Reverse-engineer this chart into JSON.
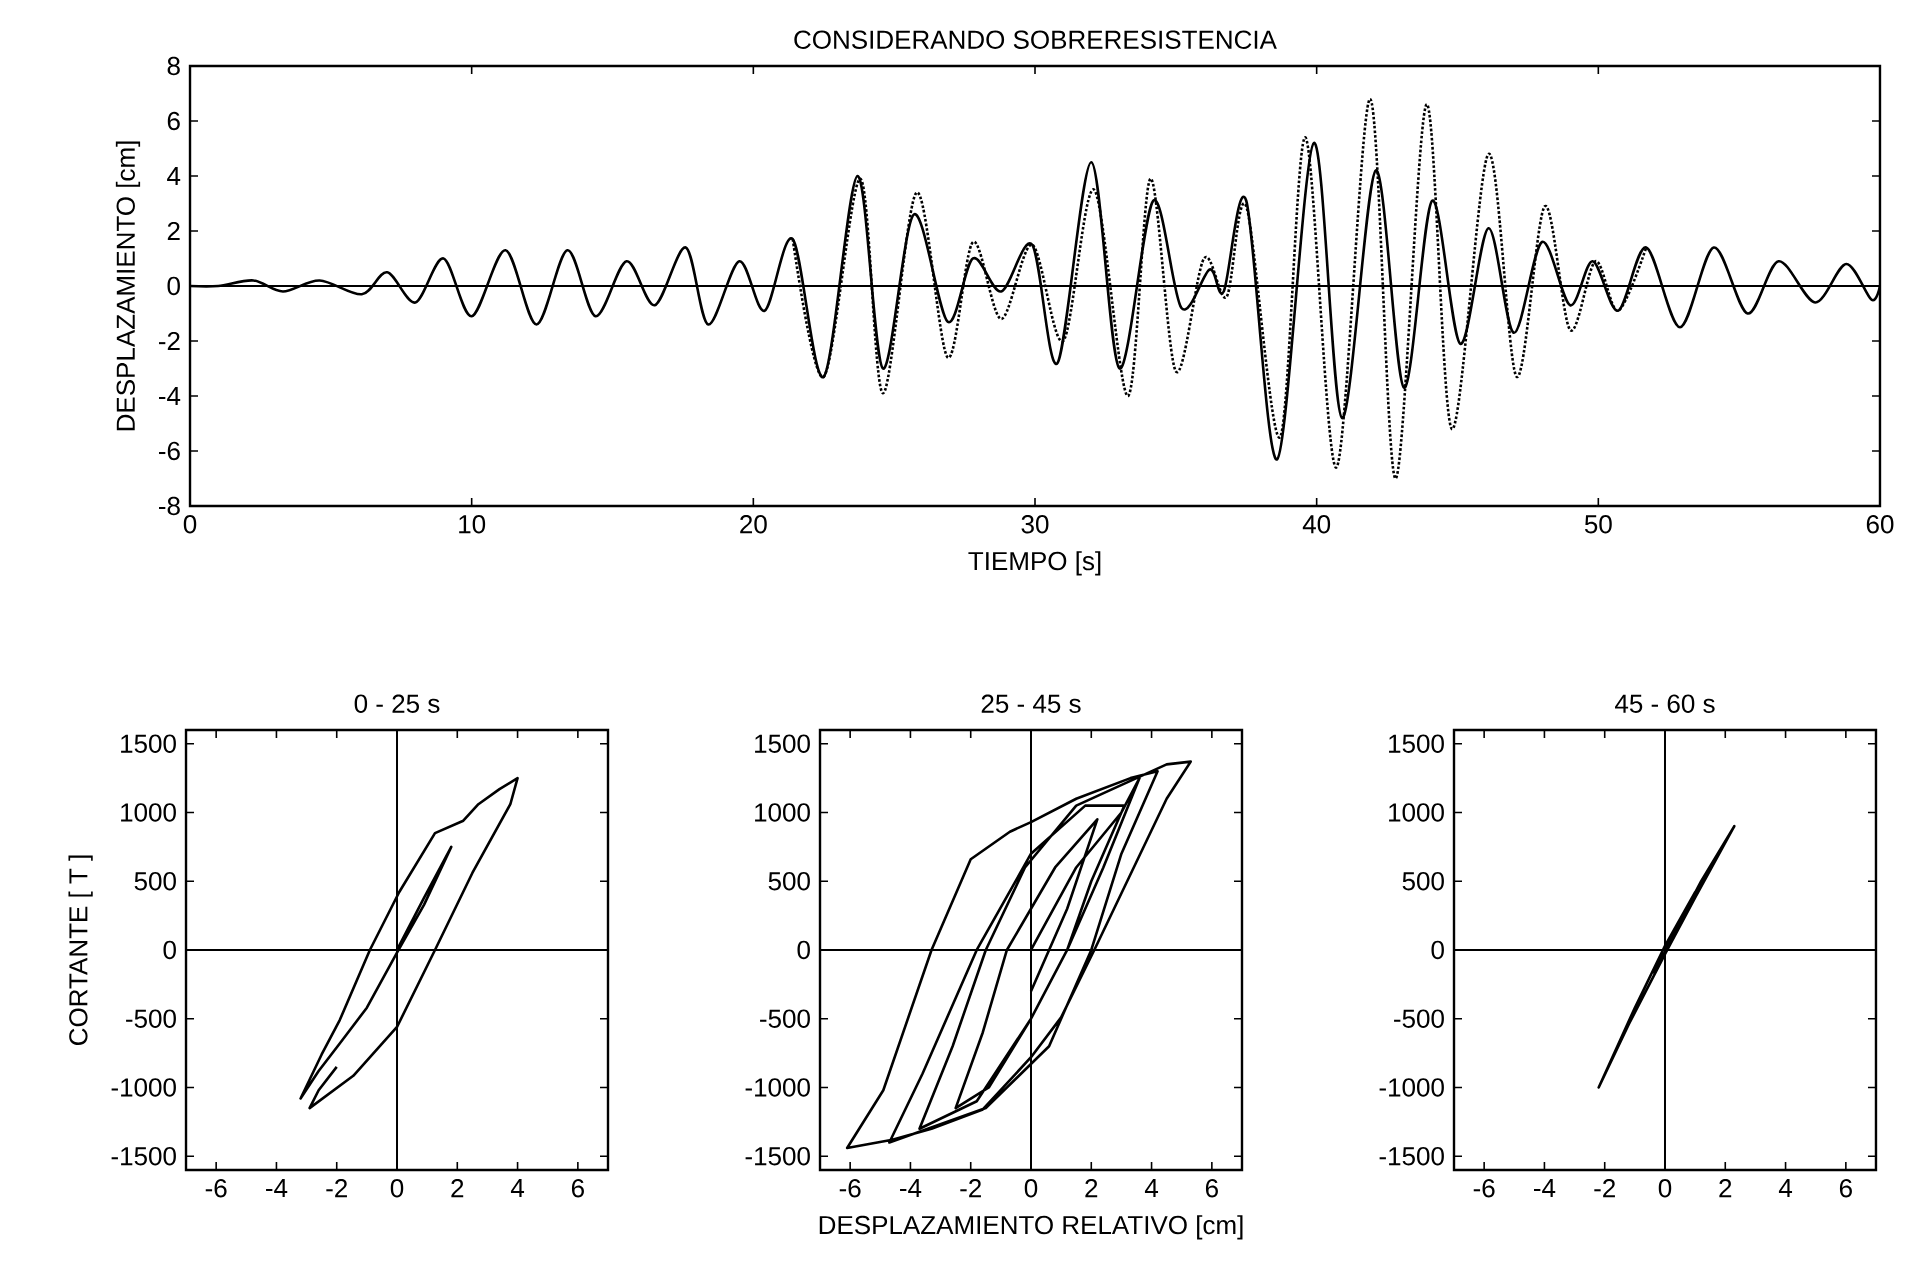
{
  "chart_data": [
    {
      "type": "line",
      "title": "CONSIDERANDO SOBRERESISTENCIA",
      "xlabel": "TIEMPO [s]",
      "ylabel": "DESPLAZAMIENTO [cm]",
      "xlim": [
        0,
        60
      ],
      "ylim": [
        -8,
        8
      ],
      "xticks": [
        0,
        10,
        20,
        30,
        40,
        50,
        60
      ],
      "yticks": [
        -8,
        -6,
        -4,
        -2,
        0,
        2,
        4,
        6,
        8
      ],
      "ref_lines": [
        {
          "axis": "y",
          "value": 0
        }
      ],
      "series": [
        {
          "color": "#000000",
          "line_style": "solid",
          "x": [
            0,
            1,
            2.25,
            3.3,
            4.6,
            6.1,
            7.0,
            8.0,
            9.0,
            10.0,
            11.2,
            12.3,
            13.4,
            14.4,
            15.5,
            16.5,
            17.6,
            18.4,
            19.5,
            20.4,
            21.4,
            22.5,
            23.7,
            24.6,
            25.7,
            26.9,
            27.8,
            28.8,
            29.9,
            30.8,
            32.0,
            33.0,
            34.2,
            35.2,
            36.2,
            36.7,
            37.5,
            38.6,
            39.9,
            40.9,
            42.1,
            43.1,
            44.1,
            45.1,
            46.1,
            47.0,
            48.0,
            49.0,
            49.8,
            50.7,
            51.7,
            52.9,
            54.1,
            55.3,
            56.4,
            57.7,
            58.8,
            59.7,
            60
          ],
          "values": [
            0,
            0,
            0.2,
            -0.2,
            0.2,
            -0.3,
            0.5,
            -0.6,
            1.0,
            -1.1,
            1.3,
            -1.4,
            1.3,
            -1.1,
            0.9,
            -0.7,
            1.4,
            -1.4,
            0.9,
            -0.9,
            1.7,
            -3.3,
            4.0,
            -3.0,
            2.6,
            -1.3,
            1.0,
            -0.2,
            1.5,
            -2.8,
            4.5,
            -3.0,
            3.1,
            -0.8,
            0.6,
            -0.2,
            3.1,
            -6.3,
            5.2,
            -4.8,
            4.2,
            -3.7,
            3.1,
            -2.1,
            2.1,
            -1.7,
            1.6,
            -0.7,
            0.9,
            -0.9,
            1.4,
            -1.5,
            1.4,
            -1.0,
            0.9,
            -0.6,
            0.8,
            -0.5,
            0
          ]
        },
        {
          "color": "#000000",
          "line_style": "dotted",
          "x": [
            21.4,
            22.5,
            23.8,
            24.6,
            25.8,
            26.9,
            27.8,
            28.8,
            29.9,
            31.0,
            32.1,
            33.3,
            34.1,
            35.0,
            36.0,
            36.8,
            37.5,
            38.7,
            39.6,
            40.7,
            41.9,
            42.8,
            43.9,
            44.8,
            46.1,
            47.1,
            48.1,
            49.0,
            49.9,
            50.7,
            51.7
          ],
          "values": [
            1.7,
            -3.3,
            3.9,
            -3.9,
            3.4,
            -2.6,
            1.6,
            -1.2,
            1.5,
            -2.0,
            3.5,
            -4.0,
            3.9,
            -3.1,
            1.0,
            -0.4,
            2.9,
            -5.5,
            5.4,
            -6.6,
            6.8,
            -7.0,
            6.6,
            -5.2,
            4.8,
            -3.3,
            2.9,
            -1.6,
            0.9,
            -0.9,
            1.4
          ]
        }
      ]
    },
    {
      "type": "line",
      "title": "0 - 25 s",
      "ylabel": "CORTANTE [ T ]",
      "xlim": [
        -7,
        7
      ],
      "ylim": [
        -1600,
        1600
      ],
      "xticks": [
        -6,
        -4,
        -2,
        0,
        2,
        4,
        6
      ],
      "yticks": [
        -1500,
        -1000,
        -500,
        0,
        500,
        1000,
        1500
      ],
      "ref_lines": [
        {
          "axis": "x",
          "value": 0
        },
        {
          "axis": "y",
          "value": 0
        }
      ],
      "series": [
        {
          "color": "#000000",
          "line_style": "solid",
          "x": [
            0,
            0.9,
            1.8,
            0.9,
            0,
            -1.0,
            -1.9,
            -2.6,
            -3.2,
            -2.5,
            -1.9,
            -0.9,
            0.07,
            1.26,
            2.2,
            2.7,
            3.4,
            4.0,
            3.76,
            2.5,
            1.26,
            0,
            -1.45,
            -2.9,
            -2.6,
            -2.0
          ],
          "values": [
            0,
            380,
            750,
            330,
            -20,
            -420,
            -680,
            -880,
            -1080,
            -760,
            -510,
            0,
            420,
            850,
            940,
            1060,
            1170,
            1250,
            1060,
            560,
            0,
            -560,
            -915,
            -1150,
            -1020,
            -850
          ]
        }
      ]
    },
    {
      "type": "line",
      "title": "25 - 45 s",
      "xlabel": "DESPLAZAMIENTO RELATIVO [cm]",
      "xlim": [
        -7,
        7
      ],
      "ylim": [
        -1600,
        1600
      ],
      "xticks": [
        -6,
        -4,
        -2,
        0,
        2,
        4,
        6
      ],
      "yticks": [
        -1500,
        -1000,
        -500,
        0,
        500,
        1000,
        1500
      ],
      "ref_lines": [
        {
          "axis": "x",
          "value": 0
        },
        {
          "axis": "y",
          "value": 0
        }
      ],
      "series": [
        {
          "color": "#000000",
          "line_style": "solid",
          "x": [
            0,
            1.5,
            3.0,
            3.6,
            2.4,
            1.2,
            0,
            -1.8,
            -3.7,
            -2.6,
            -1.5,
            -0.2,
            1.5,
            4.5,
            5.3,
            4.5,
            2.1,
            1.0,
            0,
            -1.6,
            -3.3,
            -4.6,
            -6.1,
            -4.9,
            -3.3,
            -2.0,
            -0.7,
            0,
            1.5,
            3.3,
            4.2,
            3.0,
            2.0,
            0.6,
            -1.5,
            -4.7,
            -3.6,
            -1.8,
            0,
            1.8,
            3.1,
            2.0,
            1.2,
            0,
            -1.4,
            -2.5,
            -1.6,
            -0.8,
            0.8,
            2.2,
            1.2,
            0
          ],
          "values": [
            0,
            600,
            1000,
            1250,
            600,
            0,
            -500,
            -1100,
            -1300,
            -700,
            0,
            600,
            1050,
            1350,
            1370,
            1100,
            0,
            -490,
            -780,
            -1160,
            -1300,
            -1380,
            -1440,
            -1020,
            0,
            660,
            860,
            930,
            1100,
            1250,
            1300,
            700,
            0,
            -700,
            -1150,
            -1400,
            -900,
            0,
            700,
            1050,
            1050,
            500,
            0,
            -500,
            -1000,
            -1150,
            -600,
            0,
            600,
            950,
            300,
            -300
          ]
        }
      ]
    },
    {
      "type": "line",
      "title": "45 - 60 s",
      "xlim": [
        -7,
        7
      ],
      "ylim": [
        -1600,
        1600
      ],
      "xticks": [
        -6,
        -4,
        -2,
        0,
        2,
        4,
        6
      ],
      "yticks": [
        -1500,
        -1000,
        -500,
        0,
        500,
        1000,
        1500
      ],
      "ref_lines": [
        {
          "axis": "x",
          "value": 0
        },
        {
          "axis": "y",
          "value": 0
        }
      ],
      "series": [
        {
          "color": "#000000",
          "line_style": "solid",
          "x": [
            0,
            1.2,
            2.3,
            1.0,
            0,
            -1.2,
            -2.2,
            -1.0,
            0,
            1.0,
            0.3,
            -0.4
          ],
          "values": [
            0,
            500,
            900,
            380,
            -30,
            -540,
            -1000,
            -420,
            30,
            420,
            100,
            -170
          ]
        }
      ]
    }
  ]
}
